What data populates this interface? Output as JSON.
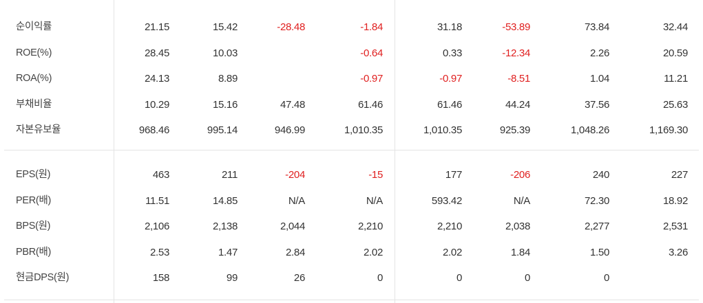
{
  "colors": {
    "negative": "#e02020",
    "text": "#333333",
    "grid": "#e4e4e4"
  },
  "sections": [
    {
      "rows": [
        {
          "label": "순이익률",
          "values": [
            "21.15",
            "15.42",
            "-28.48",
            "-1.84",
            "31.18",
            "-53.89",
            "73.84",
            "32.44"
          ]
        },
        {
          "label": "ROE(%)",
          "values": [
            "28.45",
            "10.03",
            "",
            "-0.64",
            "0.33",
            "-12.34",
            "2.26",
            "20.59"
          ]
        },
        {
          "label": "ROA(%)",
          "values": [
            "24.13",
            "8.89",
            "",
            "-0.97",
            "-0.97",
            "-8.51",
            "1.04",
            "11.21"
          ]
        },
        {
          "label": "부채비율",
          "values": [
            "10.29",
            "15.16",
            "47.48",
            "61.46",
            "61.46",
            "44.24",
            "37.56",
            "25.63"
          ]
        },
        {
          "label": "자본유보율",
          "values": [
            "968.46",
            "995.14",
            "946.99",
            "1,010.35",
            "1,010.35",
            "925.39",
            "1,048.26",
            "1,169.30"
          ]
        }
      ]
    },
    {
      "rows": [
        {
          "label": "EPS(원)",
          "values": [
            "463",
            "211",
            "-204",
            "-15",
            "177",
            "-206",
            "240",
            "227"
          ]
        },
        {
          "label": "PER(배)",
          "values": [
            "11.51",
            "14.85",
            "N/A",
            "N/A",
            "593.42",
            "N/A",
            "72.30",
            "18.92"
          ]
        },
        {
          "label": "BPS(원)",
          "values": [
            "2,106",
            "2,138",
            "2,044",
            "2,210",
            "2,210",
            "2,038",
            "2,277",
            "2,531"
          ]
        },
        {
          "label": "PBR(배)",
          "values": [
            "2.53",
            "1.47",
            "2.84",
            "2.02",
            "2.02",
            "1.84",
            "1.50",
            "3.26"
          ]
        },
        {
          "label": "현금DPS(원)",
          "values": [
            "158",
            "99",
            "26",
            "0",
            "0",
            "0",
            "0",
            ""
          ]
        }
      ]
    }
  ]
}
